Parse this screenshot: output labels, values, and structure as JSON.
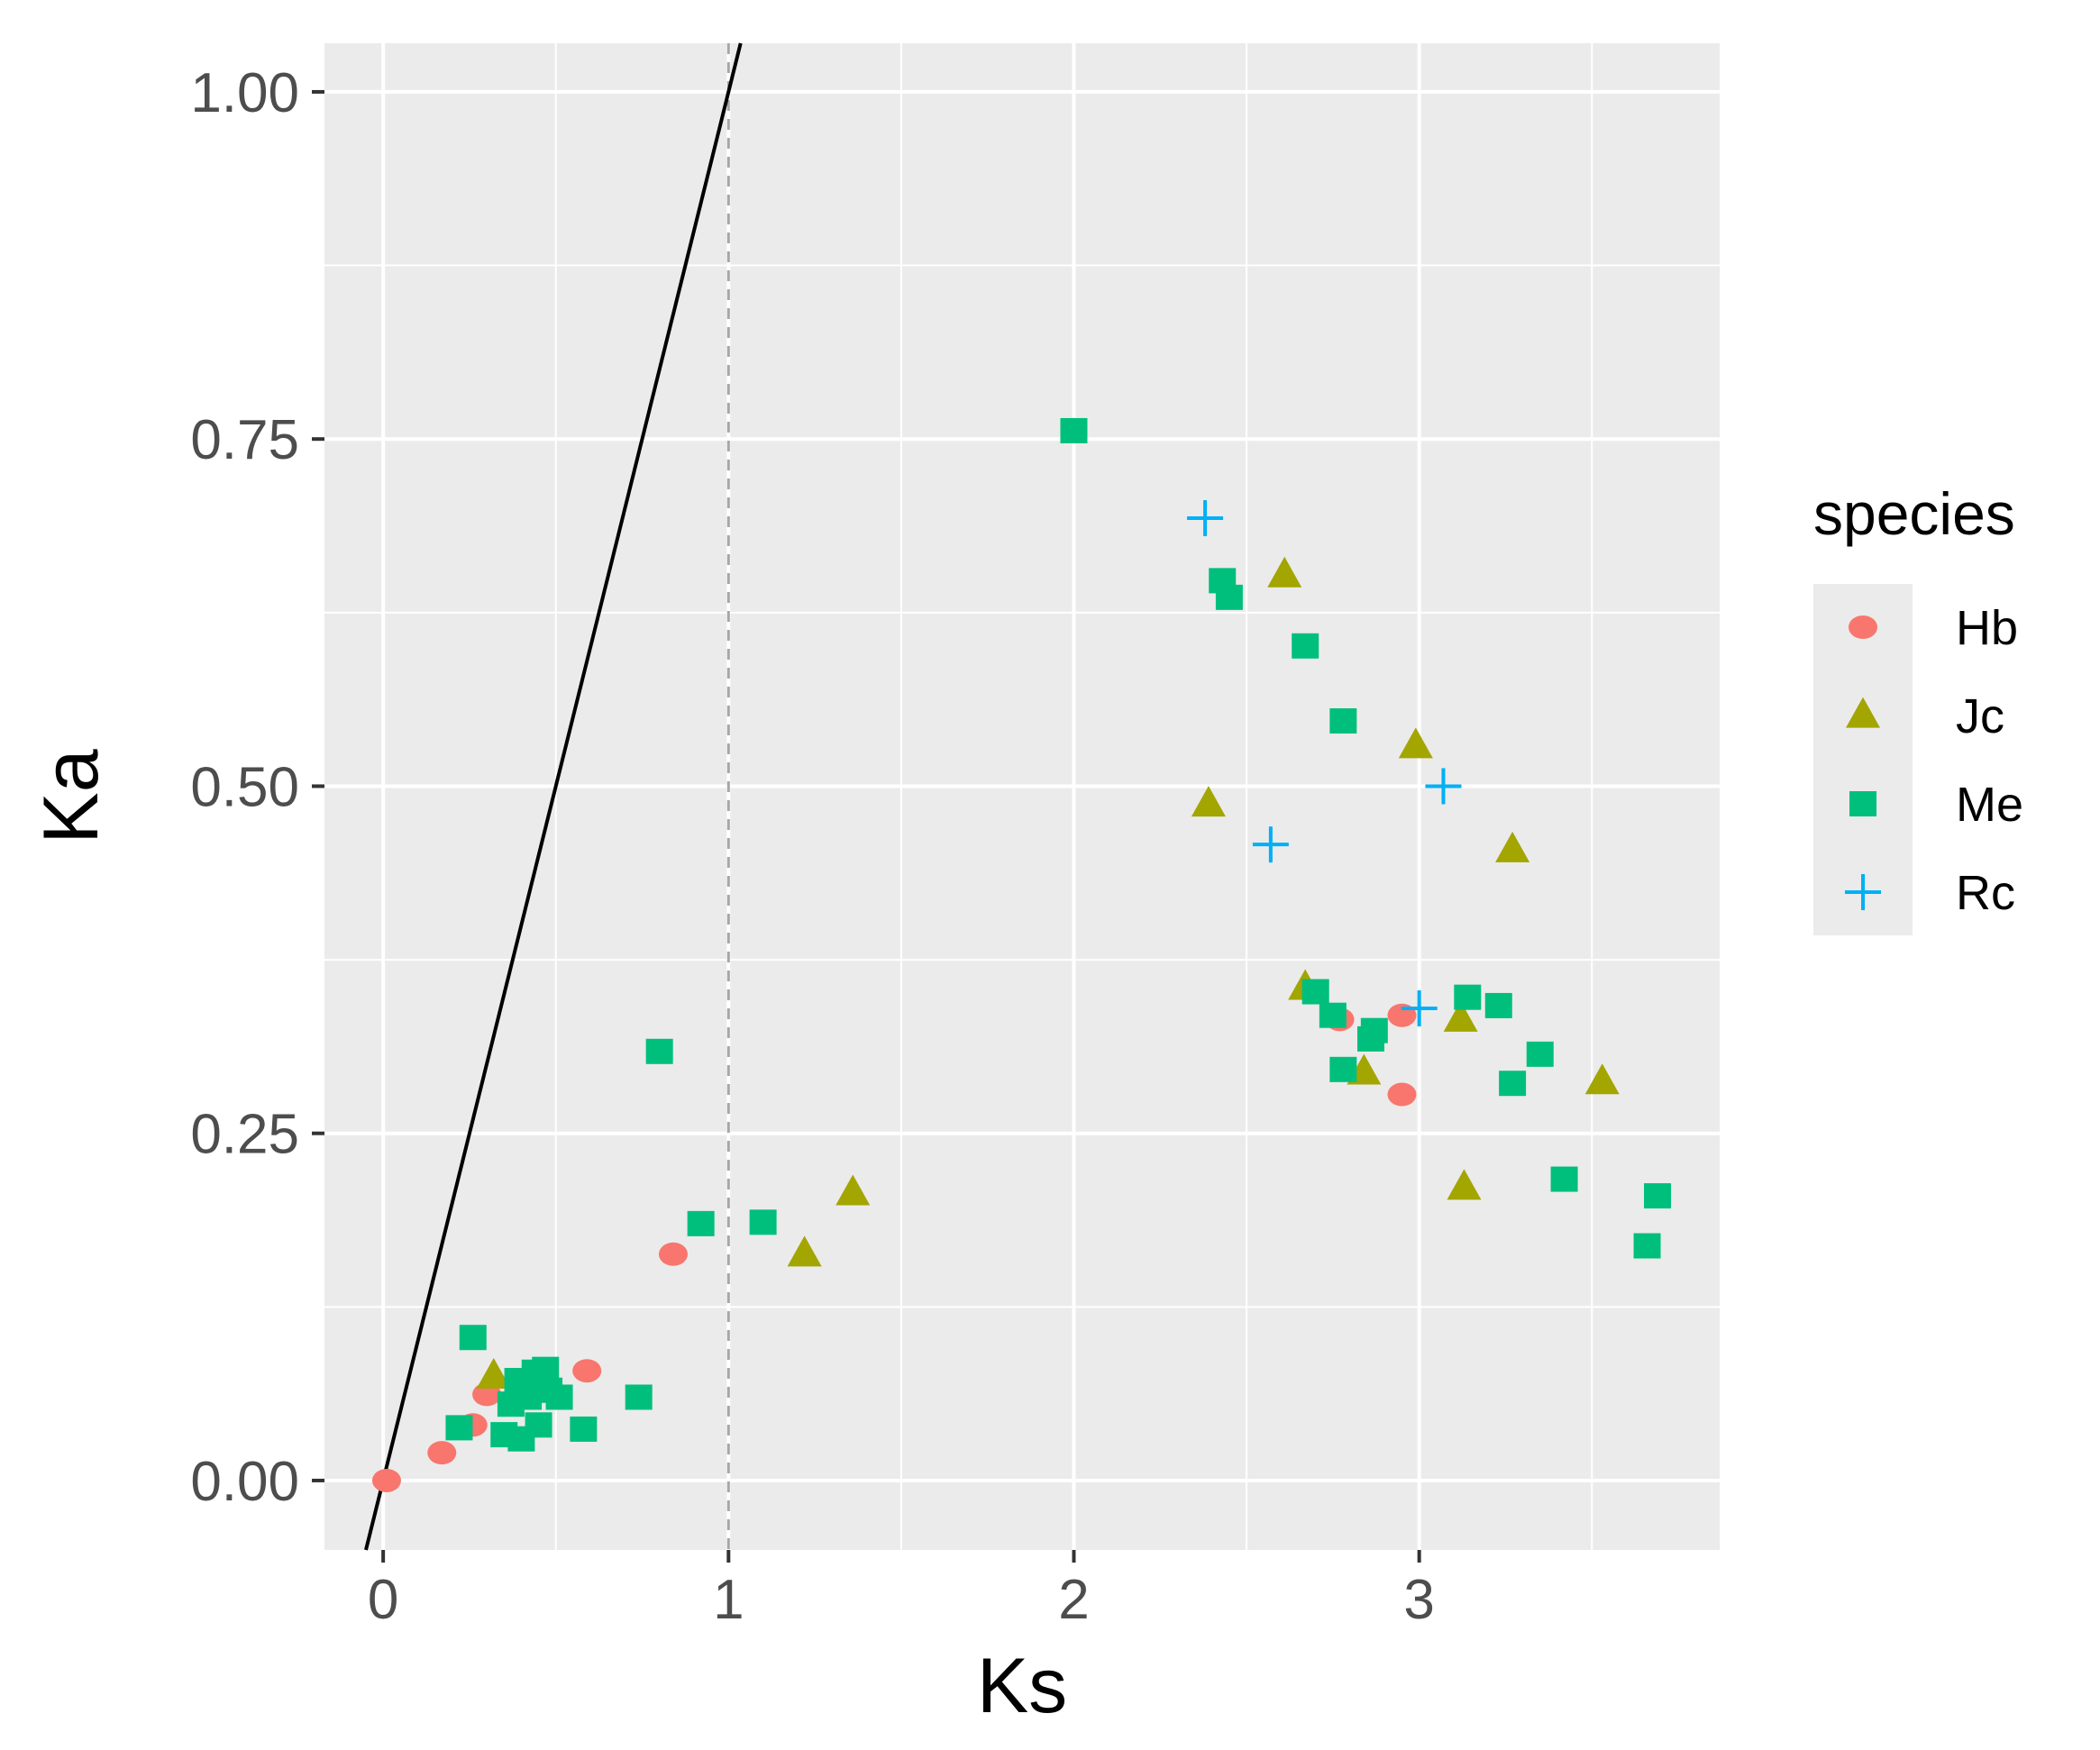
{
  "chart_data": {
    "type": "scatter",
    "xlabel": "Ks",
    "ylabel": "Ka",
    "xlim": [
      -0.17,
      3.87
    ],
    "ylim": [
      -0.05,
      1.035
    ],
    "x_ticks": [
      0,
      1,
      2,
      3
    ],
    "x_tick_labels": [
      "0",
      "1",
      "2",
      "3"
    ],
    "y_ticks": [
      0.0,
      0.25,
      0.5,
      0.75,
      1.0
    ],
    "y_tick_labels": [
      "0.00",
      "0.25",
      "0.50",
      "0.75",
      "1.00"
    ],
    "grid": true,
    "background": "#ebebeb",
    "reference_line": {
      "type": "identity",
      "slope": 1,
      "intercept": 0,
      "color": "#000000"
    },
    "vertical_dashed_line": {
      "x": 1,
      "color": "#a6a6a6"
    },
    "legend": {
      "title": "species",
      "position": "right"
    },
    "series": [
      {
        "name": "Hb",
        "shape": "circle",
        "color": "#F8766D",
        "x": [
          0.01,
          0.17,
          0.26,
          0.3,
          0.59,
          0.84,
          2.77,
          2.95,
          2.95
        ],
        "y": [
          0.0,
          0.02,
          0.04,
          0.062,
          0.079,
          0.163,
          0.332,
          0.335,
          0.278
        ]
      },
      {
        "name": "Jc",
        "shape": "triangle",
        "color": "#A3A500",
        "x": [
          0.32,
          1.22,
          1.36,
          2.39,
          2.61,
          2.99,
          3.27,
          2.67,
          3.12,
          2.84,
          3.53,
          3.13
        ],
        "y": [
          0.075,
          0.163,
          0.207,
          0.487,
          0.652,
          0.529,
          0.454,
          0.355,
          0.332,
          0.294,
          0.287,
          0.211
        ]
      },
      {
        "name": "Me",
        "shape": "square",
        "color": "#00BF7D",
        "x": [
          0.26,
          0.22,
          0.35,
          0.37,
          0.39,
          0.4,
          0.42,
          0.44,
          0.47,
          0.45,
          0.51,
          0.48,
          0.58,
          0.74,
          0.8,
          0.92,
          1.1,
          2.0,
          2.43,
          2.45,
          2.67,
          2.78,
          2.7,
          2.75,
          2.86,
          2.87,
          2.78,
          3.14,
          3.23,
          3.35,
          3.27,
          3.42,
          3.69,
          3.66
        ],
        "y": [
          0.103,
          0.038,
          0.033,
          0.055,
          0.072,
          0.03,
          0.06,
          0.078,
          0.08,
          0.04,
          0.06,
          0.065,
          0.037,
          0.06,
          0.309,
          0.185,
          0.186,
          0.756,
          0.648,
          0.636,
          0.601,
          0.547,
          0.352,
          0.335,
          0.318,
          0.324,
          0.296,
          0.348,
          0.342,
          0.307,
          0.286,
          0.217,
          0.205,
          0.169
        ]
      },
      {
        "name": "Rc",
        "shape": "plus",
        "color": "#00B0F6",
        "x": [
          2.38,
          2.57,
          3.07,
          3.0
        ],
        "y": [
          0.693,
          0.458,
          0.5,
          0.34
        ]
      }
    ]
  }
}
